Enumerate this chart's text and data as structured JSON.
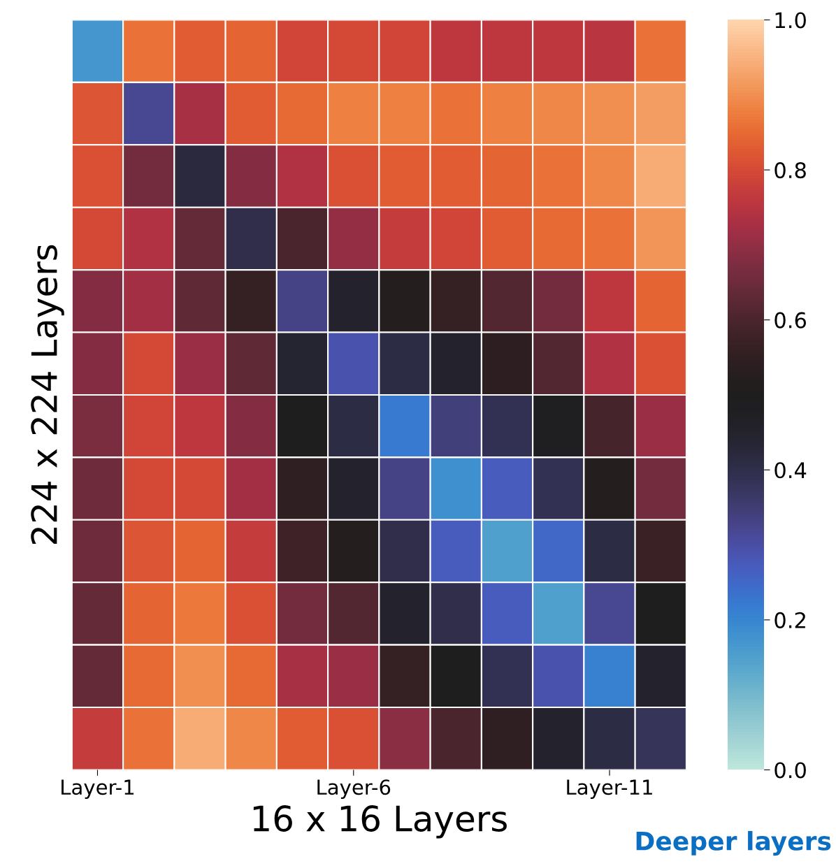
{
  "chart_data": {
    "type": "heatmap",
    "xlabel": "16 x 16 Layers",
    "ylabel": "224 x 224 Layers",
    "categories": [
      "Layer-1",
      null,
      null,
      null,
      null,
      "Layer-6",
      null,
      null,
      null,
      null,
      "Layer-11",
      null
    ],
    "y_categories": [
      null,
      null,
      null,
      null,
      null,
      null,
      null,
      null,
      null,
      null,
      null,
      null
    ],
    "cells": [
      [
        0.17,
        0.86,
        0.83,
        0.84,
        0.79,
        0.8,
        0.79,
        0.76,
        0.76,
        0.76,
        0.75,
        0.86
      ],
      [
        0.82,
        0.32,
        0.73,
        0.83,
        0.85,
        0.88,
        0.88,
        0.86,
        0.88,
        0.89,
        0.9,
        0.92
      ],
      [
        0.81,
        0.66,
        0.42,
        0.68,
        0.74,
        0.81,
        0.83,
        0.83,
        0.84,
        0.86,
        0.89,
        0.94
      ],
      [
        0.8,
        0.74,
        0.64,
        0.4,
        0.6,
        0.7,
        0.77,
        0.79,
        0.83,
        0.85,
        0.86,
        0.91
      ],
      [
        0.68,
        0.72,
        0.63,
        0.56,
        0.33,
        0.45,
        0.52,
        0.56,
        0.61,
        0.66,
        0.76,
        0.84
      ],
      [
        0.68,
        0.8,
        0.71,
        0.63,
        0.44,
        0.29,
        0.41,
        0.45,
        0.54,
        0.61,
        0.74,
        0.81
      ],
      [
        0.67,
        0.79,
        0.76,
        0.68,
        0.5,
        0.41,
        0.22,
        0.34,
        0.39,
        0.49,
        0.59,
        0.71
      ],
      [
        0.65,
        0.8,
        0.8,
        0.72,
        0.55,
        0.45,
        0.33,
        0.18,
        0.27,
        0.39,
        0.52,
        0.66
      ],
      [
        0.65,
        0.82,
        0.84,
        0.77,
        0.58,
        0.52,
        0.4,
        0.27,
        0.15,
        0.25,
        0.41,
        0.57
      ],
      [
        0.64,
        0.84,
        0.87,
        0.81,
        0.66,
        0.61,
        0.45,
        0.4,
        0.27,
        0.15,
        0.32,
        0.5
      ],
      [
        0.64,
        0.85,
        0.9,
        0.85,
        0.73,
        0.71,
        0.56,
        0.5,
        0.39,
        0.29,
        0.21,
        0.45
      ],
      [
        0.77,
        0.86,
        0.94,
        0.89,
        0.83,
        0.81,
        0.69,
        0.6,
        0.55,
        0.45,
        0.41,
        0.38
      ]
    ],
    "clim": [
      0.0,
      1.0
    ],
    "cticks": [
      {
        "value": 0.0,
        "label": "0.0"
      },
      {
        "value": 0.2,
        "label": "0.2"
      },
      {
        "value": 0.4,
        "label": "0.4"
      },
      {
        "value": 0.6,
        "label": "0.6"
      },
      {
        "value": 0.8,
        "label": "0.8"
      },
      {
        "value": 1.0,
        "label": "1.0"
      }
    ],
    "annotations": [
      "Deeper layers"
    ]
  }
}
